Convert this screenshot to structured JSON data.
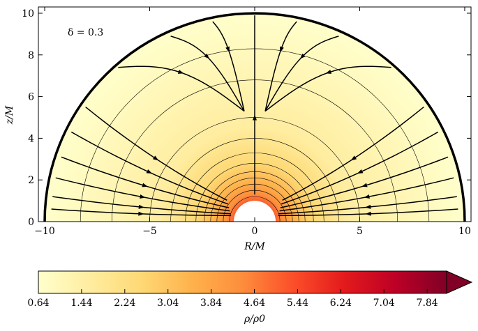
{
  "chart_data": {
    "type": "heatmap",
    "title": "",
    "annotation": "δ = 0.3",
    "xlabel": "R/M",
    "ylabel": "z/M",
    "xlim": [
      -10.3,
      10.3
    ],
    "ylim": [
      0,
      10.3
    ],
    "xticks": [
      -10,
      -5,
      0,
      5,
      10
    ],
    "xtick_labels": [
      "−10",
      "−5",
      "0",
      "5",
      "10"
    ],
    "yticks": [
      0,
      2,
      4,
      6,
      8,
      10
    ],
    "ytick_labels": [
      "0",
      "2",
      "4",
      "6",
      "8",
      "10"
    ],
    "grid": false,
    "domain_outer_radius": 10,
    "inner_hole_radius": 1,
    "density_contour_radii": [
      1.2,
      1.5,
      1.8,
      2.1,
      2.4,
      2.8,
      3.3,
      4.0,
      5.0,
      6.8,
      8.3
    ],
    "streamlines": "flow lines pointing inward toward the central object along both sides and flowing out along the axis",
    "colorbar": {
      "label": "ρ/ρ0",
      "min": 0.64,
      "max": 8.2,
      "extend": "max",
      "ticks": [
        0.64,
        1.44,
        2.24,
        3.04,
        3.84,
        4.64,
        5.44,
        6.24,
        7.04,
        7.84
      ],
      "tick_labels": [
        "0.64",
        "1.44",
        "2.24",
        "3.04",
        "3.84",
        "4.64",
        "5.44",
        "6.24",
        "7.04",
        "7.84"
      ],
      "colormap": "YlOrRd",
      "colors": [
        "#ffffcc",
        "#ffeda0",
        "#fed976",
        "#feb24c",
        "#fd8d3c",
        "#fc4e2a",
        "#e31a1c",
        "#bd0026",
        "#800026"
      ]
    }
  }
}
